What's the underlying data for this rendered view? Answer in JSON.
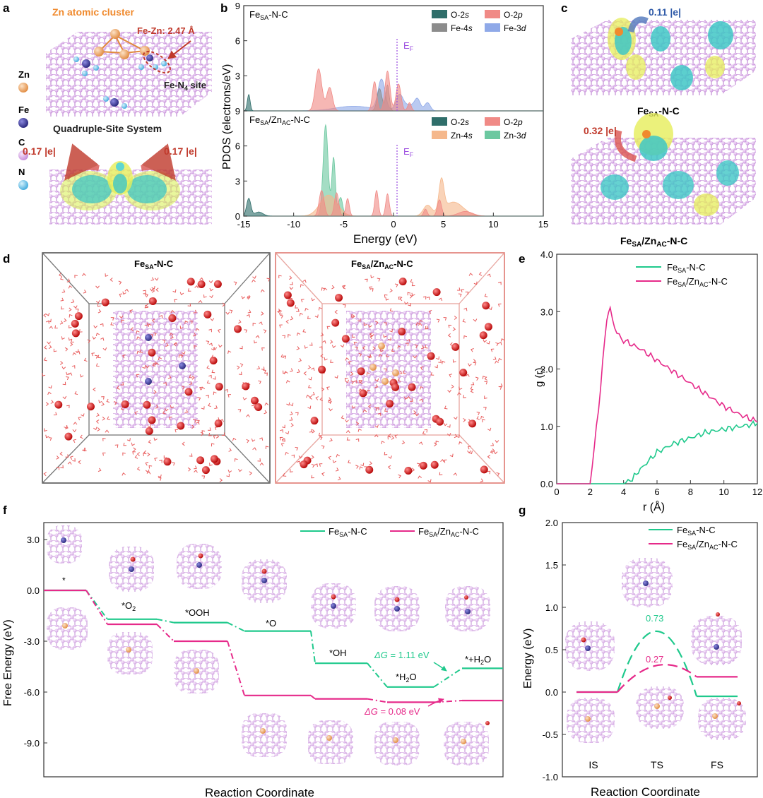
{
  "panel_letters": [
    "a",
    "b",
    "c",
    "d",
    "e",
    "f",
    "g"
  ],
  "panel_a": {
    "cluster_title": "Zn atomic cluster",
    "fe_zn_distance": "Fe-Zn: 2.47 Å",
    "site_label_main": "Fe-N",
    "site_label_sub": "4",
    "site_label_tail": " site",
    "system_title": "Quadruple-Site System",
    "legend": [
      {
        "label": "Zn",
        "color": "#f2a35e"
      },
      {
        "label": "Fe",
        "color": "#3b3aa8"
      },
      {
        "label": "C",
        "color": "#d9a6e6"
      },
      {
        "label": "N",
        "color": "#6cc6ec"
      }
    ],
    "charge_left": "0.17 |e|",
    "charge_right": "0.17 |e|"
  },
  "panel_b": {
    "ylabel": "PDOS (electrons/eV)",
    "xlabel": "Energy (eV)",
    "fermi_main": "E",
    "fermi_sub": "F",
    "colors": {
      "o2s": "#2f6e6a",
      "o2p": "#f08a86",
      "fe4s": "#8c8c8c",
      "fe3d": "#8fa9e8",
      "zn4s": "#f5b88c",
      "zn3d": "#6cc8a0"
    },
    "top": {
      "label_main": "Fe",
      "label_sub": "SA",
      "label_tail": "-N-C",
      "legend": [
        {
          "main": "O-2",
          "it": "s",
          "color": "#2f6e6a"
        },
        {
          "main": "O-2",
          "it": "p",
          "color": "#f08a86"
        },
        {
          "main": "Fe-4",
          "it": "s",
          "color": "#8c8c8c"
        },
        {
          "main": "Fe-3",
          "it": "d",
          "color": "#8fa9e8"
        }
      ]
    },
    "bottom": {
      "label_main": "Fe",
      "label_sub": "SA",
      "label_mid": "/Zn",
      "label_sub2": "AC",
      "label_tail": "-N-C",
      "legend": [
        {
          "main": "O-2",
          "it": "s",
          "color": "#2f6e6a"
        },
        {
          "main": "O-2",
          "it": "p",
          "color": "#f08a86"
        },
        {
          "main": "Zn-4",
          "it": "s",
          "color": "#f5b88c"
        },
        {
          "main": "Zn-3",
          "it": "d",
          "color": "#6cc8a0"
        }
      ]
    },
    "chart_data": {
      "type": "area",
      "xlim": [
        -15,
        15
      ],
      "xticks": [
        "-15",
        "-10",
        "-5",
        "0",
        "5",
        "10",
        "15"
      ],
      "top_ylim": [
        0,
        9
      ],
      "top_yticks": [
        "3",
        "6",
        "9"
      ],
      "bottom_ylim": [
        0,
        9
      ],
      "bottom_yticks": [
        "0",
        "3",
        "6",
        "9"
      ],
      "fermi_level": 0
    }
  },
  "panel_c": {
    "top_charge": "0.11 |e|",
    "top_label_main": "Fe",
    "top_label_sub": "SA",
    "top_label_tail": "-N-C",
    "bottom_charge": "0.32 |e|",
    "bottom_label_main": "Fe",
    "bottom_label_sub": "SA",
    "bottom_label_mid": "/Zn",
    "bottom_label_sub2": "AC",
    "bottom_label_tail": "-N-C"
  },
  "panel_d": {
    "left_title_main": "Fe",
    "left_title_sub": "SA",
    "left_title_tail": "-N-C",
    "right_title_main": "Fe",
    "right_title_sub": "SA",
    "right_title_mid": "/Zn",
    "right_title_sub2": "AC",
    "right_title_tail": "-N-C",
    "left_frame_color": "#555555",
    "right_frame_color": "#e07a72"
  },
  "panel_e": {
    "chart_data": {
      "type": "line",
      "xlim": [
        0,
        12
      ],
      "ylim": [
        0,
        4
      ],
      "xticks": [
        "0",
        "2",
        "4",
        "6",
        "8",
        "10",
        "12"
      ],
      "yticks": [
        "0.0",
        "1.0",
        "2.0",
        "3.0",
        "4.0"
      ],
      "ylabel": "g (r)",
      "xlabel": "r (Å)",
      "series": [
        {
          "name_main": "Fe",
          "name_sub": "SA",
          "name_tail": "-N-C",
          "color": "#1fc98c",
          "x": [
            0,
            4.0,
            4.4,
            5.0,
            6.0,
            7.0,
            8.0,
            9.0,
            10.0,
            11.0,
            12.0
          ],
          "y": [
            0,
            0,
            0.05,
            0.25,
            0.55,
            0.7,
            0.8,
            0.9,
            0.95,
            1.0,
            1.05
          ]
        },
        {
          "name_main": "Fe",
          "name_sub": "SA",
          "name_mid": "/Zn",
          "name_sub2": "AC",
          "name_tail": "-N-C",
          "color": "#e62a8a",
          "x": [
            0,
            2.0,
            2.5,
            3.0,
            3.2,
            3.6,
            4.0,
            5.0,
            6.0,
            7.0,
            8.0,
            9.0,
            10.0,
            11.0,
            12.0
          ],
          "y": [
            0,
            0,
            1.3,
            2.9,
            3.05,
            2.6,
            2.5,
            2.35,
            2.15,
            1.95,
            1.75,
            1.55,
            1.35,
            1.2,
            1.08
          ]
        }
      ]
    }
  },
  "panel_f": {
    "chart_data": {
      "type": "line",
      "ylim": [
        -11,
        4
      ],
      "yticks": [
        "3.0",
        "0.0",
        "-3.0",
        "-6.0",
        "-9.0"
      ],
      "ylabel": "Free Energy (eV)",
      "xlabel": "Reaction Coordinate",
      "step_labels": [
        "*",
        "*O2",
        "*OOH",
        "*O",
        "*OH",
        "*H2O",
        "*+H2O"
      ],
      "series": [
        {
          "name_main": "Fe",
          "name_sub": "SA",
          "name_tail": "-N-C",
          "color": "#1fc98c",
          "values": [
            0.0,
            -1.7,
            -1.9,
            -2.4,
            -4.3,
            -5.7,
            -4.6
          ]
        },
        {
          "name_main": "Fe",
          "name_sub": "SA",
          "name_mid": "/Zn",
          "name_sub2": "AC",
          "name_tail": "-N-C",
          "color": "#e62a8a",
          "values": [
            0.0,
            -2.0,
            -3.0,
            -6.2,
            -6.4,
            -6.6,
            -6.5
          ]
        }
      ],
      "annotations": [
        {
          "text_main": "ΔG",
          "text_tail": " = 1.11 eV",
          "color": "#1fc98c"
        },
        {
          "text_main": "ΔG",
          "text_tail": " = 0.08 eV",
          "color": "#e62a8a"
        }
      ]
    }
  },
  "panel_g": {
    "chart_data": {
      "type": "line",
      "ylim": [
        -1.0,
        2.0
      ],
      "yticks": [
        "2.0",
        "1.5",
        "1.0",
        "0.5",
        "0.0",
        "-0.5",
        "-1.0"
      ],
      "ylabel": "Energy (eV)",
      "xlabel": "Reaction Coordinate",
      "categories": [
        "IS",
        "TS",
        "FS"
      ],
      "series": [
        {
          "name_main": "Fe",
          "name_sub": "SA",
          "name_tail": "-N-C",
          "color": "#1fc98c",
          "values": [
            0.0,
            0.73,
            -0.05
          ],
          "ts_label": "0.73"
        },
        {
          "name_main": "Fe",
          "name_sub": "SA",
          "name_mid": "/Zn",
          "name_sub2": "AC",
          "name_tail": "-N-C",
          "color": "#e62a8a",
          "values": [
            0.0,
            0.27,
            0.18
          ],
          "ts_label": "0.27"
        }
      ]
    }
  }
}
